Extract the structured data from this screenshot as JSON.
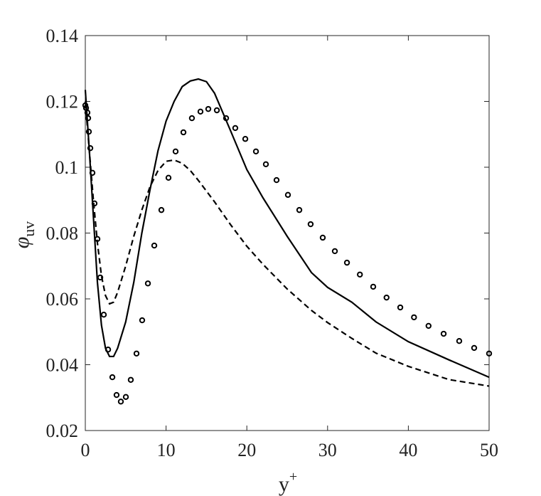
{
  "chart_data": {
    "type": "line",
    "xlabel": {
      "text": "y",
      "superscript": "+"
    },
    "ylabel": {
      "text": "φ",
      "subscript": "uv"
    },
    "xlim": [
      0,
      50
    ],
    "xticks": [
      0,
      10,
      20,
      30,
      40,
      50
    ],
    "ylim": [
      0.02,
      0.14
    ],
    "yticks": [
      0.02,
      0.04,
      0.06,
      0.08,
      0.1,
      0.12,
      0.14
    ],
    "grid": false,
    "series": [
      {
        "style": "solid",
        "color": "#000000",
        "x": [
          0,
          0.5,
          1,
          1.5,
          2,
          2.5,
          3,
          3.5,
          4,
          5,
          6,
          7,
          8,
          9,
          10,
          11,
          12,
          13,
          14,
          15,
          16,
          18,
          20,
          22,
          25,
          28,
          30,
          33,
          36,
          40,
          45,
          50
        ],
        "values": [
          0.1235,
          0.105,
          0.085,
          0.065,
          0.052,
          0.045,
          0.0425,
          0.0425,
          0.045,
          0.053,
          0.065,
          0.08,
          0.093,
          0.105,
          0.114,
          0.12,
          0.1245,
          0.1262,
          0.1268,
          0.126,
          0.1225,
          0.111,
          0.0993,
          0.0907,
          0.079,
          0.068,
          0.0635,
          0.059,
          0.053,
          0.047,
          0.0415,
          0.0362
        ]
      },
      {
        "style": "dashed",
        "color": "#000000",
        "x": [
          0,
          0.5,
          1,
          1.5,
          2,
          2.5,
          3,
          3.5,
          4,
          5,
          6,
          7,
          8,
          9,
          10,
          11,
          12,
          13,
          14,
          16,
          18,
          20,
          22,
          25,
          28,
          30,
          33,
          36,
          40,
          45,
          50
        ],
        "values": [
          0.12,
          0.105,
          0.09,
          0.077,
          0.067,
          0.061,
          0.0585,
          0.059,
          0.062,
          0.07,
          0.079,
          0.087,
          0.094,
          0.099,
          0.1018,
          0.1022,
          0.1012,
          0.099,
          0.096,
          0.0895,
          0.0825,
          0.076,
          0.0705,
          0.063,
          0.0565,
          0.0528,
          0.048,
          0.0435,
          0.0395,
          0.0355,
          0.0335
        ]
      },
      {
        "style": "markers",
        "color": "#000000",
        "x": [
          0,
          0.09,
          0.26,
          0.35,
          0.44,
          0.62,
          0.88,
          1.14,
          1.5,
          1.85,
          2.29,
          2.82,
          3.35,
          3.87,
          4.4,
          5.02,
          5.63,
          6.34,
          7.04,
          7.75,
          8.54,
          9.42,
          10.3,
          11.18,
          12.15,
          13.2,
          14.26,
          15.23,
          16.29,
          17.43,
          18.57,
          19.81,
          21.13,
          22.36,
          23.68,
          25.09,
          26.5,
          27.9,
          29.4,
          30.9,
          32.4,
          34.0,
          35.65,
          37.3,
          39.0,
          40.7,
          42.5,
          44.37,
          46.3,
          48.15,
          50
        ],
        "values": [
          0.1188,
          0.118,
          0.1166,
          0.1149,
          0.1108,
          0.1058,
          0.0983,
          0.089,
          0.0782,
          0.0665,
          0.0552,
          0.0446,
          0.0362,
          0.0308,
          0.0288,
          0.0302,
          0.0354,
          0.0434,
          0.0535,
          0.0647,
          0.0762,
          0.087,
          0.0968,
          0.1048,
          0.1106,
          0.1149,
          0.1169,
          0.1177,
          0.1173,
          0.1149,
          0.1119,
          0.1086,
          0.1048,
          0.1009,
          0.0961,
          0.0916,
          0.087,
          0.0827,
          0.0786,
          0.0745,
          0.071,
          0.0674,
          0.0637,
          0.0604,
          0.0574,
          0.0544,
          0.0518,
          0.0494,
          0.0472,
          0.0451,
          0.0434
        ]
      }
    ]
  }
}
